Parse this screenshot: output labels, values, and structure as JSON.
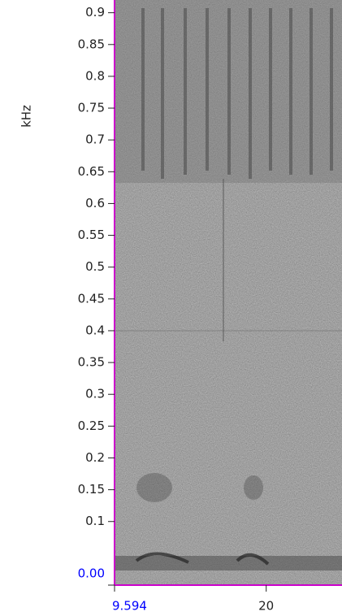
{
  "chart_data": {
    "type": "spectrogram",
    "ylabel": "kHz",
    "ylim": [
      0,
      0.92
    ],
    "yticks": [
      {
        "value": 0,
        "label": "0.00"
      },
      0.1,
      0.15,
      0.2,
      0.25,
      0.3,
      0.35,
      0.4,
      0.45,
      0.5,
      0.55,
      0.6,
      0.65,
      0.7,
      0.75,
      0.8,
      0.85,
      0.9
    ],
    "xlim": [
      9.594,
      25.2
    ],
    "xticks": [
      9.594,
      20
    ],
    "axis_color": "#cc00cc",
    "start_label_color": "#0000ff"
  }
}
